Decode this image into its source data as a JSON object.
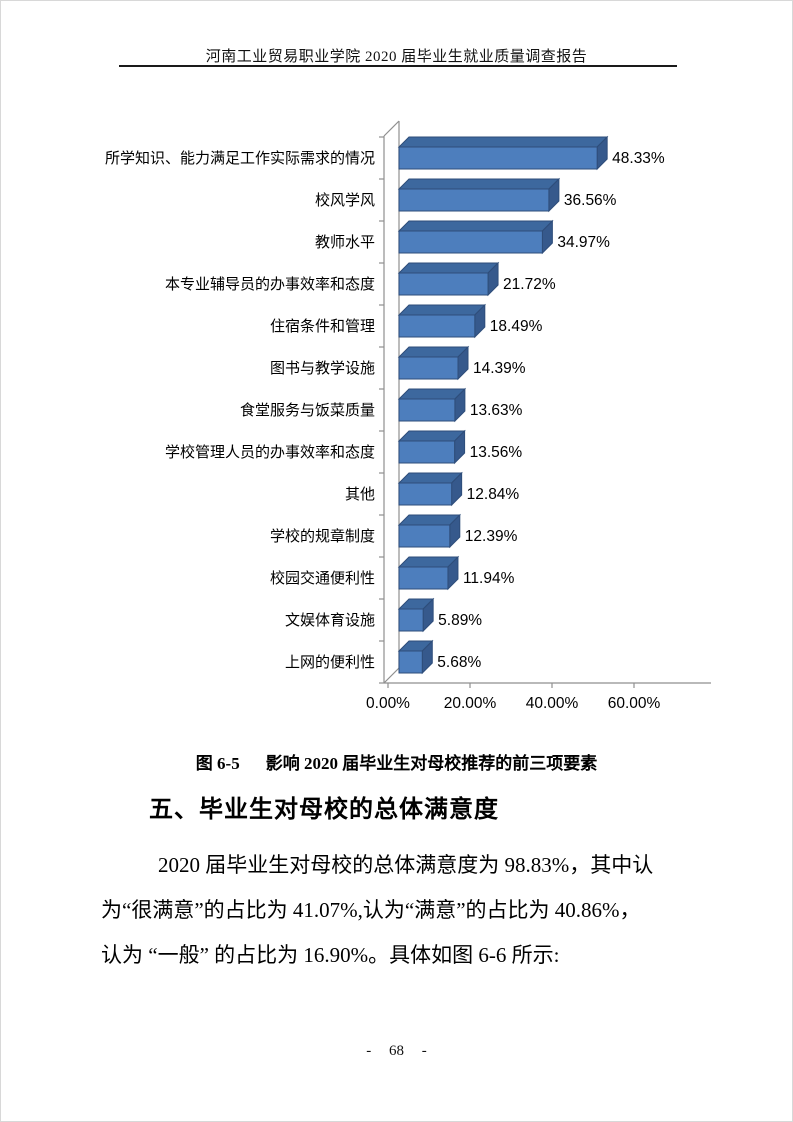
{
  "page": {
    "header": "河南工业贸易职业学院 2020 届毕业生就业质量调查报告",
    "footer_page_number": "- 68 -"
  },
  "chart_data": {
    "type": "bar",
    "orientation": "horizontal",
    "style": "3d",
    "title": "",
    "xlabel": "",
    "ylabel": "",
    "categories": [
      "所学知识、能力满足工作实际需求的情况",
      "校风学风",
      "教师水平",
      "本专业辅导员的办事效率和态度",
      "住宿条件和管理",
      "图书与教学设施",
      "食堂服务与饭菜质量",
      "学校管理人员的办事效率和态度",
      "其他",
      "学校的规章制度",
      "校园交通便利性",
      "文娱体育设施",
      "上网的便利性"
    ],
    "values": [
      48.33,
      36.56,
      34.97,
      21.72,
      18.49,
      14.39,
      13.63,
      13.56,
      12.84,
      12.39,
      11.94,
      5.89,
      5.68
    ],
    "value_labels": [
      "48.33%",
      "36.56%",
      "34.97%",
      "21.72%",
      "18.49%",
      "14.39%",
      "13.63%",
      "13.56%",
      "12.84%",
      "12.39%",
      "11.94%",
      "5.89%",
      "5.68%"
    ],
    "x_tick_labels": [
      "0.00%",
      "20.00%",
      "40.00%",
      "60.00%"
    ],
    "x_tick_values": [
      0,
      20,
      40,
      60
    ],
    "xlim": [
      0,
      60
    ],
    "grid": false,
    "legend": false,
    "colors": {
      "bar_front": "#4d7ebd",
      "bar_top": "#3d689e",
      "bar_side": "#36598c",
      "bar_edge": "#2e4d7a",
      "axis": "#8f8f8f"
    }
  },
  "caption": {
    "label": "图 6-5",
    "text": "影响 2020 届毕业生对母校推荐的前三项要素"
  },
  "section": {
    "heading": "五、毕业生对母校的总体满意度"
  },
  "paragraph": {
    "lines": [
      "2020 届毕业生对母校的总体满意度为 98.83%，其中认",
      "为“很满意”的占比为 41.07%,认为“满意”的占比为 40.86%，",
      "认为 “一般” 的占比为 16.90%。具体如图 6-6 所示:"
    ]
  }
}
